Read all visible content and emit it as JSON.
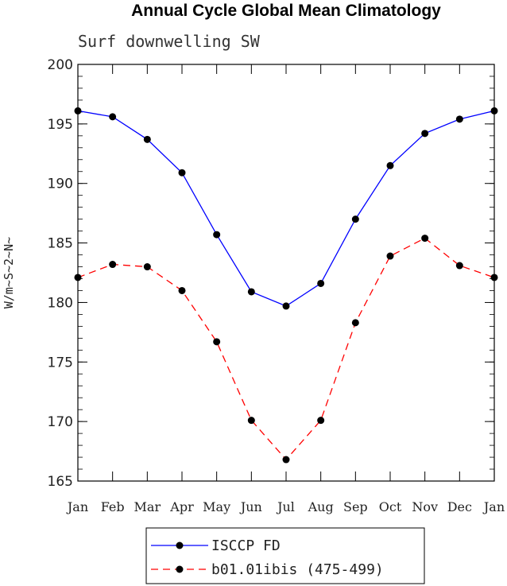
{
  "chart_data": {
    "type": "line",
    "title": "Annual Cycle Global Mean Climatology",
    "subtitle": "Surf downwelling SW",
    "ylabel": "W/m~S~2~N~",
    "xlabel": "",
    "categories": [
      "Jan",
      "Feb",
      "Mar",
      "Apr",
      "May",
      "Jun",
      "Jul",
      "Aug",
      "Sep",
      "Oct",
      "Nov",
      "Dec",
      "Jan"
    ],
    "ylim": [
      165,
      200
    ],
    "yticks": [
      165,
      170,
      175,
      180,
      185,
      190,
      195,
      200
    ],
    "ytick_labels": [
      "165",
      "170",
      "175",
      "180",
      "185",
      "190",
      "195",
      "200"
    ],
    "grid": false,
    "legend_position": "bottom",
    "series": [
      {
        "name": "ISCCP FD",
        "color": "#0000ff",
        "dash": "solid",
        "marker": "circle",
        "values": [
          196.1,
          195.6,
          193.7,
          190.9,
          185.7,
          180.9,
          179.7,
          181.6,
          187.0,
          191.5,
          194.2,
          195.4,
          196.1
        ]
      },
      {
        "name": "b01.01ibis (475-499)",
        "color": "#ff0000",
        "dash": "dashed",
        "marker": "circle",
        "values": [
          182.1,
          183.2,
          183.0,
          181.0,
          176.7,
          170.1,
          166.8,
          170.1,
          178.3,
          183.9,
          185.4,
          183.1,
          182.1
        ]
      }
    ]
  }
}
